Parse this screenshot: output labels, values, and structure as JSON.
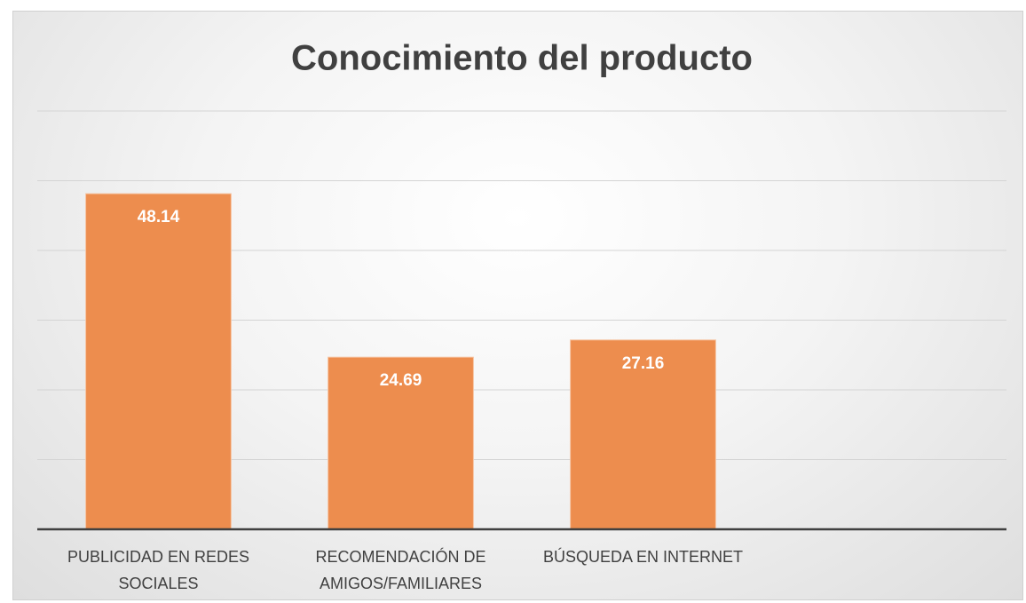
{
  "chart_data": {
    "type": "bar",
    "title": "Conocimiento del producto",
    "categories": [
      "PUBLICIDAD EN REDES SOCIALES",
      "RECOMENDACIÓN DE AMIGOS/FAMILIARES",
      "BÚSQUEDA EN INTERNET",
      null
    ],
    "values": [
      48.14,
      24.69,
      27.16,
      null
    ],
    "color": "#ed8d4e",
    "ylim": [
      0,
      60
    ],
    "yticks": [
      0,
      10,
      20,
      30,
      40,
      50,
      60
    ],
    "grid": true
  }
}
